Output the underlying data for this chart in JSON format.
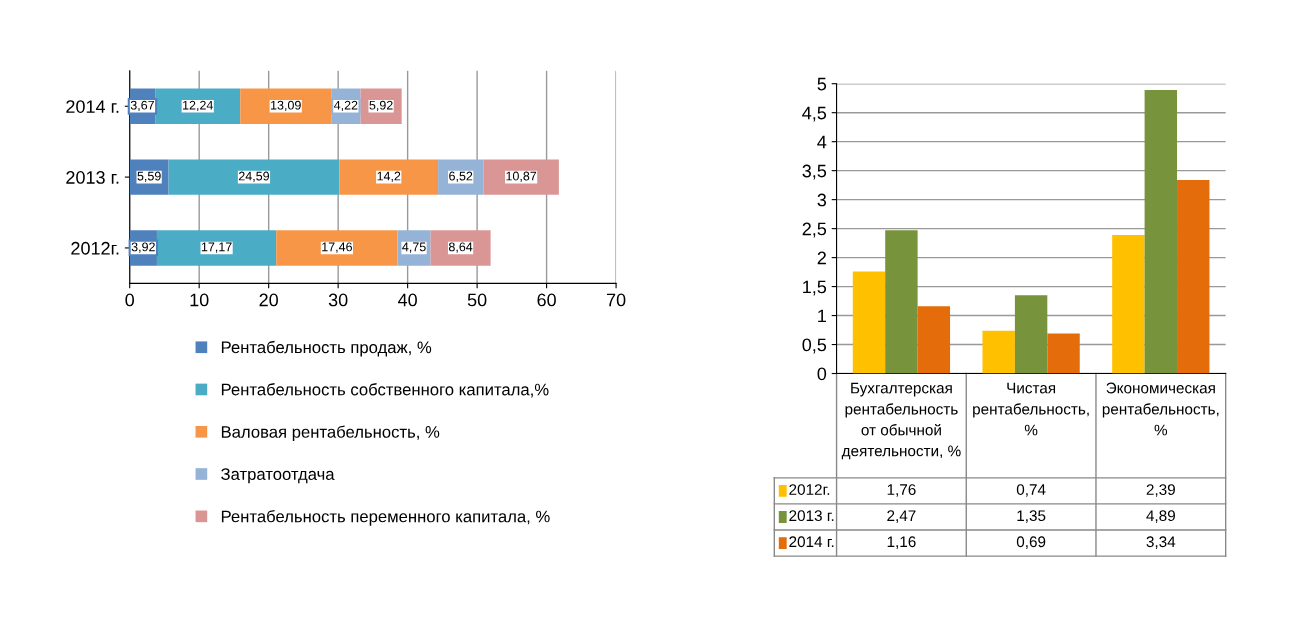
{
  "chart_data": [
    {
      "type": "bar",
      "orientation": "horizontal",
      "stacked": true,
      "grid": "x",
      "legend": "bottom",
      "categories": [
        "2014 г.",
        "2013 г.",
        "2012г."
      ],
      "xlim": [
        0,
        70
      ],
      "xticks": [
        0,
        10,
        20,
        30,
        40,
        50,
        60,
        70
      ],
      "series": [
        {
          "name": "Рентабельность продаж, %",
          "color": "#4f81bd",
          "values": [
            3.67,
            5.59,
            3.92
          ],
          "value_labels": [
            "3,67",
            "5,59",
            "3,92"
          ]
        },
        {
          "name": "Рентабельность собственного капитала,%",
          "color": "#4bacc6",
          "values": [
            12.24,
            24.59,
            17.17
          ],
          "value_labels": [
            "12,24",
            "24,59",
            "17,17"
          ]
        },
        {
          "name": "Валовая рентабельность, %",
          "color": "#f79646",
          "values": [
            13.09,
            14.2,
            17.46
          ],
          "value_labels": [
            "13,09",
            "14,2",
            "17,46"
          ]
        },
        {
          "name": "Затратоотдача",
          "color": "#95b3d7",
          "values": [
            4.22,
            6.52,
            4.75
          ],
          "value_labels": [
            "4,22",
            "6,52",
            "4,75"
          ]
        },
        {
          "name": "Рентабельность переменного капитала, %",
          "color": "#d99694",
          "values": [
            5.92,
            10.87,
            8.64
          ],
          "value_labels": [
            "5,92",
            "10,87",
            "8,64"
          ]
        }
      ]
    },
    {
      "type": "bar",
      "grid": "y",
      "legend": "bottom",
      "categories": [
        "Бухгалтерская рентабельность от обычной деятельности, %",
        "Чистая рентабельность, %",
        "Экономическая рентабельность, %"
      ],
      "ylim": [
        0,
        5
      ],
      "yticks": [
        0,
        {
          "value": 0.5,
          "label": "0,5"
        },
        1,
        {
          "value": 1.5,
          "label": "1,5"
        },
        2,
        {
          "value": 2.5,
          "label": "2,5"
        },
        3,
        {
          "value": 3.5,
          "label": "3,5"
        },
        4,
        {
          "value": 4.5,
          "label": "4,5"
        },
        5
      ],
      "series": [
        {
          "name": "2012г.",
          "color": "#ffc000",
          "values": [
            1.76,
            0.74,
            2.39
          ],
          "value_labels": [
            "1,76",
            "0,74",
            "2,39"
          ]
        },
        {
          "name": "2013 г.",
          "color": "#77933c",
          "values": [
            2.47,
            1.35,
            4.89
          ],
          "value_labels": [
            "2,47",
            "1,35",
            "4,89"
          ]
        },
        {
          "name": "2014 г.",
          "color": "#e46c0a",
          "values": [
            1.16,
            0.69,
            3.34
          ],
          "value_labels": [
            "1,16",
            "0,69",
            "3,34"
          ]
        }
      ]
    }
  ]
}
